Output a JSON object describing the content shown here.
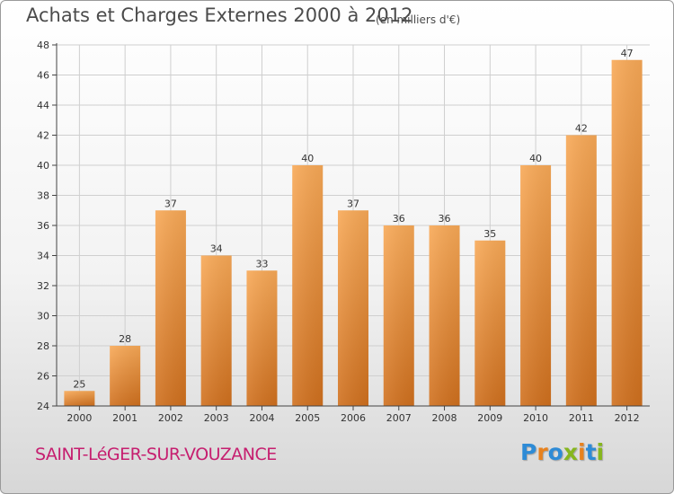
{
  "header": {
    "title": "Achats et Charges Externes 2000 à 2012",
    "unit_note": "(en milliers d'€)"
  },
  "footer": {
    "place": "SAINT-LéGER-SUR-VOUZANCE",
    "brand": "Proxiti"
  },
  "colors": {
    "bar_top": "#f8a957",
    "bar_bottom": "#d0701e",
    "grid": "#cfcfcf",
    "place": "#c61e6f",
    "brand_letters": [
      "#2e8bd6",
      "#e8821e",
      "#2e8bd6",
      "#86b61e",
      "#e8821e",
      "#2e8bd6",
      "#86b61e"
    ]
  },
  "chart_data": {
    "type": "bar",
    "categories": [
      "2000",
      "2001",
      "2002",
      "2003",
      "2004",
      "2005",
      "2006",
      "2007",
      "2008",
      "2009",
      "2010",
      "2011",
      "2012"
    ],
    "values": [
      25,
      28,
      37,
      34,
      33,
      40,
      37,
      36,
      36,
      35,
      40,
      42,
      47
    ],
    "ylim": [
      24,
      48
    ],
    "yticks": [
      24,
      26,
      28,
      30,
      32,
      34,
      36,
      38,
      40,
      42,
      44,
      46,
      48
    ],
    "grid": true,
    "data_labels": true
  }
}
